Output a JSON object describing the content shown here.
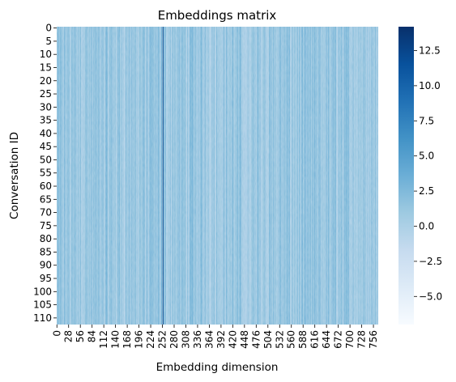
{
  "chart_data": {
    "type": "heatmap",
    "title": "Embeddings matrix",
    "xlabel": "Embedding dimension",
    "ylabel": "Conversation ID",
    "n_rows": 113,
    "n_cols": 768,
    "x_tick_labels": [
      "0",
      "28",
      "56",
      "84",
      "112",
      "140",
      "168",
      "196",
      "224",
      "252",
      "280",
      "308",
      "336",
      "364",
      "392",
      "420",
      "448",
      "476",
      "504",
      "532",
      "560",
      "588",
      "616",
      "644",
      "672",
      "700",
      "728",
      "756"
    ],
    "y_tick_labels": [
      "0",
      "5",
      "10",
      "15",
      "20",
      "25",
      "30",
      "35",
      "40",
      "45",
      "50",
      "55",
      "60",
      "65",
      "70",
      "75",
      "80",
      "85",
      "90",
      "95",
      "100",
      "105",
      "110"
    ],
    "colorbar": {
      "min": -7.0,
      "max": 14.2,
      "tick_values": [
        -5.0,
        -2.5,
        0.0,
        2.5,
        5.0,
        7.5,
        10.0,
        12.5
      ],
      "tick_labels": [
        "−5.0",
        "−2.5",
        "0.0",
        "2.5",
        "5.0",
        "7.5",
        "10.0",
        "12.5"
      ],
      "colormap": "Blues",
      "colors": [
        "#f7fbff",
        "#deebf7",
        "#c6dbef",
        "#9ecae1",
        "#6baed6",
        "#4292c6",
        "#2171b5",
        "#08519c",
        "#08306b"
      ]
    },
    "notable_columns": [
      {
        "dimension": 253,
        "value": 14.0
      },
      {
        "dimension": 254,
        "value": 9.5
      },
      {
        "dimension": 250,
        "value": 5.0
      }
    ],
    "typical_value_range": [
      -1.0,
      3.0
    ]
  }
}
